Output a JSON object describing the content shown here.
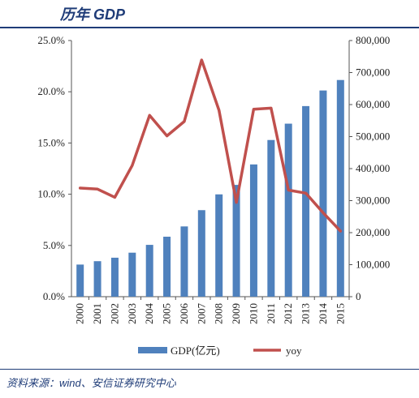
{
  "header": {
    "title": "历年 GDP"
  },
  "footer": {
    "source": "资料来源：wind、安信证券研究中心"
  },
  "chart_data": {
    "type": "bar",
    "categories": [
      "2000",
      "2001",
      "2002",
      "2003",
      "2004",
      "2005",
      "2006",
      "2007",
      "2008",
      "2009",
      "2010",
      "2011",
      "2012",
      "2013",
      "2014",
      "2015"
    ],
    "series": [
      {
        "name": "GDP(亿元)",
        "type": "bar",
        "axis": "right",
        "values": [
          100280,
          110863,
          121717,
          137422,
          161840,
          187319,
          219439,
          270232,
          319516,
          349081,
          413030,
          489301,
          540367,
          595244,
          643974,
          676708
        ]
      },
      {
        "name": "yoy",
        "type": "line",
        "axis": "left",
        "values": [
          0.106,
          0.105,
          0.097,
          0.128,
          0.177,
          0.157,
          0.171,
          0.231,
          0.182,
          0.092,
          0.183,
          0.184,
          0.104,
          0.101,
          0.082,
          0.064
        ]
      }
    ],
    "y_left": {
      "ylim": [
        0,
        0.25
      ],
      "ticks": [
        "0.0%",
        "5.0%",
        "10.0%",
        "15.0%",
        "20.0%",
        "25.0%"
      ]
    },
    "y_right": {
      "ylim": [
        0,
        800000
      ],
      "ticks": [
        "0",
        "100,000",
        "200,000",
        "300,000",
        "400,000",
        "500,000",
        "600,000",
        "700,000",
        "800,000"
      ]
    },
    "legend": "bottom",
    "grid": false,
    "colors": {
      "bar": "#4f81bd",
      "line": "#c0504d",
      "axis": "#555555"
    }
  }
}
